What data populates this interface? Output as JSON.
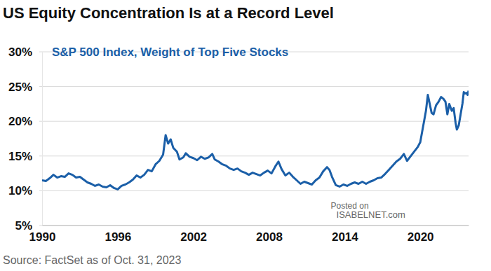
{
  "chart_data": {
    "type": "line",
    "title": "US Equity Concentration Is at a Record Level",
    "subtitle": "S&P 500 Index, Weight of Top Five Stocks",
    "source": "Source: FactSet as of Oct. 31, 2023",
    "annotations": [
      "Posted on",
      "ISABELNET.com"
    ],
    "color": "#1b5fa8",
    "grid": true,
    "x": [
      1990.0,
      1990.3,
      1990.6,
      1990.9,
      1991.2,
      1991.5,
      1991.8,
      1992.1,
      1992.4,
      1992.7,
      1993.0,
      1993.3,
      1993.6,
      1993.9,
      1994.2,
      1994.5,
      1994.8,
      1995.1,
      1995.4,
      1995.7,
      1996.0,
      1996.3,
      1996.6,
      1996.9,
      1997.2,
      1997.5,
      1997.8,
      1998.1,
      1998.4,
      1998.7,
      1999.0,
      1999.3,
      1999.6,
      1999.8,
      2000.0,
      2000.2,
      2000.4,
      2000.7,
      2000.9,
      2001.2,
      2001.4,
      2001.7,
      2002.0,
      2002.3,
      2002.6,
      2002.9,
      2003.2,
      2003.5,
      2003.7,
      2004.0,
      2004.3,
      2004.6,
      2004.9,
      2005.2,
      2005.5,
      2005.8,
      2006.1,
      2006.4,
      2006.7,
      2007.0,
      2007.3,
      2007.6,
      2007.9,
      2008.2,
      2008.5,
      2008.75,
      2009.0,
      2009.3,
      2009.6,
      2009.9,
      2010.2,
      2010.5,
      2010.8,
      2011.1,
      2011.4,
      2011.7,
      2012.0,
      2012.3,
      2012.6,
      2012.8,
      2013.0,
      2013.3,
      2013.6,
      2013.9,
      2014.2,
      2014.5,
      2014.8,
      2015.1,
      2015.4,
      2015.7,
      2016.0,
      2016.3,
      2016.6,
      2016.9,
      2017.2,
      2017.5,
      2017.8,
      2018.1,
      2018.4,
      2018.7,
      2018.95,
      2019.2,
      2019.5,
      2019.8,
      2020.0,
      2020.15,
      2020.3,
      2020.45,
      2020.6,
      2020.75,
      2020.9,
      2021.05,
      2021.25,
      2021.45,
      2021.65,
      2021.85,
      2022.0,
      2022.15,
      2022.3,
      2022.5,
      2022.65,
      2022.8,
      2022.9,
      2023.05,
      2023.2,
      2023.35,
      2023.45,
      2023.55,
      2023.65,
      2023.75,
      2023.83
    ],
    "values": [
      11.5,
      11.4,
      11.8,
      12.3,
      11.9,
      12.1,
      12.0,
      12.5,
      12.3,
      11.9,
      12.0,
      11.6,
      11.2,
      11.0,
      10.7,
      10.9,
      10.6,
      10.5,
      10.8,
      10.4,
      10.2,
      10.7,
      10.9,
      11.2,
      11.6,
      12.2,
      11.9,
      12.3,
      13.0,
      12.8,
      13.8,
      14.3,
      15.2,
      18.0,
      16.8,
      17.4,
      16.2,
      15.6,
      14.5,
      14.8,
      15.4,
      14.9,
      14.7,
      14.4,
      14.9,
      14.6,
      14.8,
      15.3,
      14.5,
      14.2,
      13.8,
      13.6,
      13.2,
      13.0,
      13.2,
      12.8,
      12.6,
      12.3,
      12.6,
      12.4,
      12.2,
      12.6,
      12.9,
      12.5,
      13.5,
      14.2,
      13.1,
      12.2,
      12.6,
      12.0,
      11.5,
      11.0,
      11.3,
      11.1,
      10.9,
      11.5,
      11.9,
      12.8,
      13.4,
      13.0,
      12.0,
      10.8,
      10.6,
      10.9,
      10.7,
      11.0,
      11.2,
      11.0,
      11.3,
      11.0,
      11.3,
      11.5,
      11.8,
      11.9,
      12.4,
      13.0,
      13.6,
      14.2,
      14.6,
      15.3,
      14.3,
      14.9,
      15.6,
      16.3,
      17.0,
      18.5,
      20.0,
      21.5,
      23.8,
      22.5,
      21.2,
      21.0,
      22.3,
      22.8,
      23.5,
      23.2,
      22.8,
      21.0,
      22.5,
      21.5,
      21.9,
      19.8,
      18.8,
      19.4,
      21.0,
      22.6,
      24.2,
      24.0,
      24.1,
      23.8,
      24.4
    ],
    "xlim": [
      1990,
      2023.83
    ],
    "xticks": [
      1990,
      1996,
      2002,
      2008,
      2014,
      2020
    ],
    "ylim": [
      5,
      30
    ],
    "yticks": [
      {
        "value": 5,
        "label": "5%"
      },
      {
        "value": 10,
        "label": "10%"
      },
      {
        "value": 15,
        "label": "15%"
      },
      {
        "value": 20,
        "label": "20%"
      },
      {
        "value": 25,
        "label": "25%"
      },
      {
        "value": 30,
        "label": "30%"
      }
    ]
  }
}
